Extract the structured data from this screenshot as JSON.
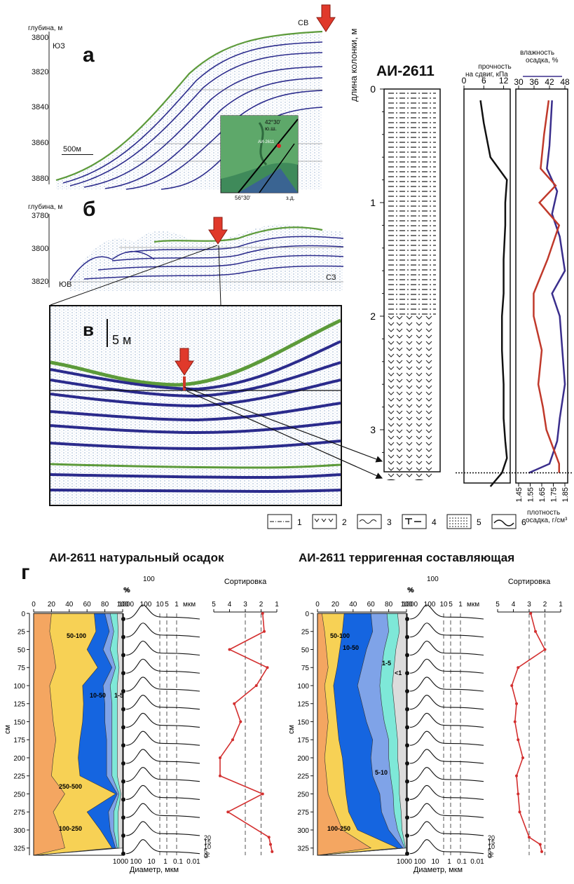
{
  "panel_a": {
    "letter": "а",
    "depth_label": "глубина, м",
    "depth_ticks": [
      "3800",
      "3820",
      "3840",
      "3860",
      "3880"
    ],
    "left_dir": "ЮЗ",
    "right_dir": "СВ",
    "scale": "500м",
    "inset": {
      "lat": "42°30'",
      "lat_hemi": "ю.ш.",
      "lon": "56°30'",
      "lon_hemi": "з.д.",
      "station": "АИ-2611"
    }
  },
  "panel_b": {
    "letter": "б",
    "depth_label": "глубина, м",
    "depth_ticks": [
      "3780",
      "3800",
      "3820"
    ],
    "left_dir": "ЮВ",
    "right_dir": "СЗ"
  },
  "panel_v": {
    "letter": "в",
    "scale": "5 м"
  },
  "core": {
    "title": "АИ-2611",
    "axis_label": "длина колонки, м",
    "depth_ticks": [
      "0",
      "1",
      "2",
      "3"
    ]
  },
  "strength": {
    "label_line1": "прочность",
    "label_line2": "на сдвиг, кПа",
    "ticks": [
      "0",
      "6",
      "12"
    ],
    "depth_m": [
      0.1,
      0.3,
      0.6,
      0.8,
      1.0,
      1.2,
      1.5,
      1.8,
      2.0,
      2.3,
      2.6,
      2.9,
      3.1,
      3.25,
      3.38,
      3.5
    ],
    "values": [
      5,
      6,
      8,
      13,
      12.5,
      12.5,
      12,
      12,
      11.5,
      11.5,
      12,
      12,
      12.5,
      13,
      11.5,
      8
    ]
  },
  "moisture": {
    "label_line1": "влажность",
    "label_line2": "осадка, %",
    "ticks": [
      "30",
      "36",
      "42",
      "48"
    ],
    "depth_m": [
      0.1,
      0.5,
      0.7,
      0.9,
      1.1,
      1.3,
      1.6,
      1.8,
      2.0,
      2.3,
      2.6,
      2.9,
      3.1,
      3.3,
      3.38
    ],
    "values": [
      43,
      42,
      41,
      45,
      43,
      46,
      48,
      43,
      46,
      47,
      48,
      46,
      45,
      42,
      34
    ]
  },
  "density": {
    "label_line1": "плотность",
    "label_line2": "осадка, г/см³",
    "ticks": [
      "1.45",
      "1.55",
      "1.65",
      "1.75",
      "1.85"
    ],
    "depth_m": [
      0.1,
      0.4,
      0.7,
      0.85,
      1.0,
      1.2,
      1.5,
      1.8,
      2.0,
      2.3,
      2.6,
      2.8,
      3.0,
      3.3,
      3.38
    ],
    "values": [
      1.71,
      1.67,
      1.64,
      1.77,
      1.63,
      1.8,
      1.7,
      1.58,
      1.58,
      1.65,
      1.62,
      1.66,
      1.69,
      1.8,
      1.8
    ]
  },
  "legend": {
    "items": [
      "1",
      "2",
      "3",
      "4",
      "5",
      "6"
    ]
  },
  "panel_g": {
    "letter": "г"
  },
  "grain_left": {
    "title": "АИ-2611 натуральный осадок",
    "pct_ticks": [
      "0",
      "20",
      "40",
      "60",
      "80",
      "100"
    ],
    "pct_sign": "%",
    "depth_ticks": [
      "0",
      "25",
      "50",
      "75",
      "100",
      "125",
      "150",
      "175",
      "200",
      "225",
      "250",
      "275",
      "300",
      "325"
    ],
    "depth_unit": "см",
    "fractions": [
      "50-100",
      "10-50",
      "1-5",
      "250-500",
      "100-250"
    ],
    "sorting_title": "Сортировка",
    "sorting_ticks": [
      "5",
      "4",
      "3",
      "2",
      "1"
    ],
    "sorting_depth": [
      0,
      25,
      50,
      75,
      100,
      125,
      150,
      175,
      200,
      225,
      250,
      275,
      310,
      320,
      330
    ],
    "sorting_values": [
      1.9,
      1.8,
      4.0,
      1.6,
      2.3,
      3.7,
      3.3,
      3.8,
      4.6,
      4.6,
      1.9,
      4.1,
      1.5,
      1.4,
      1.3
    ],
    "diam_ticks": [
      "1000",
      "100",
      "10",
      "5",
      "1",
      "мкм"
    ],
    "diam_bottom": [
      "1000",
      "100",
      "10",
      "1",
      "0.1",
      "0.01"
    ],
    "diam_label": "Диаметр, мкм",
    "hist_peak": "100",
    "hist_pct_ticks": [
      "20",
      "15",
      "10",
      "5",
      "0"
    ],
    "hist_pct": "%"
  },
  "grain_right": {
    "title": "АИ-2611 терригенная составляющая",
    "pct_ticks": [
      "0",
      "20",
      "40",
      "60",
      "80",
      "100"
    ],
    "pct_sign": "%",
    "depth_ticks": [
      "0",
      "25",
      "50",
      "75",
      "100",
      "125",
      "150",
      "175",
      "200",
      "225",
      "250",
      "275",
      "300",
      "325"
    ],
    "depth_unit": "см",
    "fractions": [
      "50-100",
      "10-50",
      "1-5",
      "<1",
      "5-10",
      "100-250"
    ],
    "sorting_title": "Сортировка",
    "sorting_ticks": [
      "5",
      "4",
      "3",
      "2",
      "1"
    ],
    "sorting_depth": [
      0,
      25,
      50,
      75,
      100,
      125,
      150,
      175,
      200,
      225,
      250,
      275,
      310,
      320,
      330
    ],
    "sorting_values": [
      2.9,
      2.6,
      2.0,
      3.7,
      4.1,
      3.8,
      3.9,
      3.7,
      3.4,
      3.8,
      3.7,
      3.6,
      3.0,
      2.3,
      2.2
    ],
    "diam_ticks": [
      "1000",
      "100",
      "10",
      "5",
      "1",
      "мкм"
    ],
    "diam_bottom": [
      "1000",
      "100",
      "10",
      "1",
      "0.1",
      "0.01"
    ],
    "diam_label": "Диаметр, мкм",
    "hist_peak": "100",
    "hist_pct_ticks": [
      "20",
      "15",
      "10",
      "5",
      "0"
    ],
    "hist_pct": "%"
  },
  "colors": {
    "strength": "#111111",
    "moisture": "#3a2e8c",
    "density": "#c0392b",
    "orange": "#f4a661",
    "yellow": "#f7d155",
    "blue": "#1565e0",
    "lightblue": "#7fa3e8",
    "cyan": "#7ee8d8",
    "grey": "#dcdcdc"
  }
}
